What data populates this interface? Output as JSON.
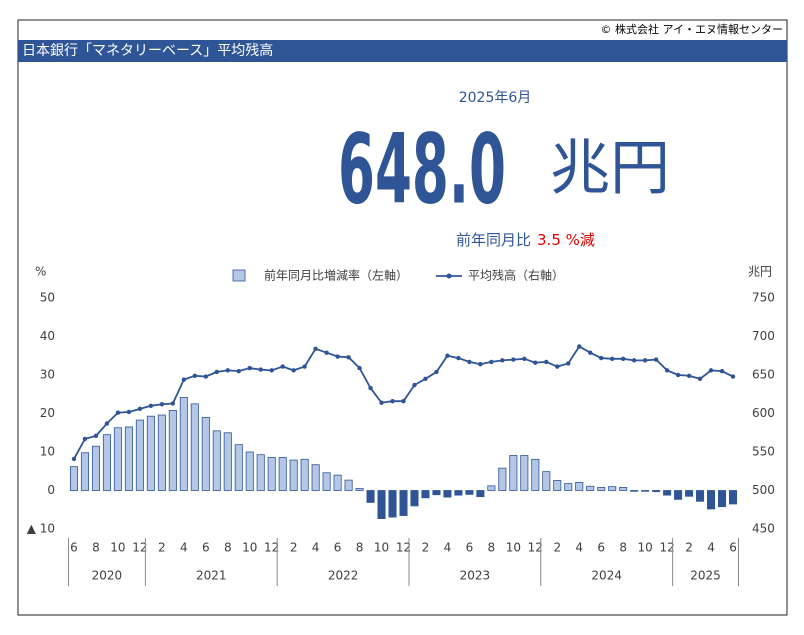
{
  "copyright": "© 株式会社 アイ・エヌ情報センター",
  "title": "日本銀行「マネタリーベース」平均残高",
  "period": "2025年6月",
  "headline_value": "648.0",
  "headline_unit": "兆円",
  "comparison_label": "前年同月比",
  "comparison_value": "3.5 %",
  "comparison_suffix": "減",
  "chart_data": {
    "type": "combo",
    "ylabel": "%",
    "y2label": "兆円",
    "categories": [
      "6",
      null,
      "8",
      null,
      "10",
      null,
      "12",
      null,
      "2",
      null,
      "4",
      null,
      "6",
      null,
      "8",
      null,
      "10",
      null,
      "12",
      null,
      "2",
      null,
      "4",
      null,
      "6",
      null,
      "8",
      null,
      "10",
      null,
      "12",
      null,
      "2",
      null,
      "4",
      null,
      "6",
      null,
      "8",
      null,
      "10",
      null,
      "12",
      null,
      "2",
      null,
      "4",
      null,
      "6",
      null,
      "8",
      null,
      "10",
      null,
      "12",
      null,
      "2",
      null,
      "4",
      null,
      "6"
    ],
    "years": [
      "2020",
      "2021",
      "2022",
      "2023",
      "2024",
      "2025"
    ],
    "ylim": [
      -10,
      50
    ],
    "yticks": [
      {
        "value": -10,
        "label": "▲ 10"
      },
      0,
      10,
      20,
      30,
      40,
      50
    ],
    "y2lim": [
      450,
      750
    ],
    "y2ticks": [
      450,
      500,
      550,
      600,
      650,
      700,
      750
    ],
    "grid": false,
    "legend": "top",
    "series": [
      {
        "name": "前年同月比増減率（左軸）",
        "type": "bar",
        "color": "#b4c7e7",
        "negative_color": "#2f5597",
        "edge_color": "#2f5597",
        "values": [
          6.2,
          9.8,
          11.5,
          14.5,
          16.3,
          16.5,
          18.3,
          19.3,
          19.6,
          20.8,
          24.2,
          22.5,
          19.0,
          15.5,
          15.0,
          11.9,
          10.0,
          9.3,
          8.6,
          8.6,
          7.9,
          8.1,
          6.7,
          4.6,
          4.0,
          2.7,
          0.5,
          -3.1,
          -7.3,
          -6.9,
          -6.5,
          -4.0,
          -1.9,
          -1.1,
          -1.7,
          -1.2,
          -1.0,
          -1.6,
          1.2,
          5.8,
          9.1,
          9.1,
          8.1,
          4.9,
          2.6,
          1.8,
          2.1,
          1.1,
          0.8,
          1.0,
          0.8,
          -0.2,
          -0.2,
          -0.3,
          -1.2,
          -2.3,
          -1.5,
          -2.8,
          -4.8,
          -4.2,
          -3.5
        ]
      },
      {
        "name": "平均残高（右軸）",
        "type": "line",
        "axis": "y2",
        "color": "#2f5597",
        "values": [
          541,
          567,
          571,
          587,
          601,
          602,
          606,
          610,
          612,
          613,
          644,
          649,
          648,
          654,
          656,
          655,
          659,
          657,
          656,
          661,
          656,
          661,
          684,
          679,
          674,
          673,
          659,
          633,
          614,
          616,
          616,
          637,
          645,
          654,
          675,
          672,
          667,
          664,
          667,
          669,
          670,
          671,
          666,
          667,
          661,
          665,
          687,
          679,
          672,
          671,
          671,
          669,
          669,
          670,
          656,
          650,
          649,
          645,
          656,
          655,
          648
        ]
      }
    ]
  }
}
